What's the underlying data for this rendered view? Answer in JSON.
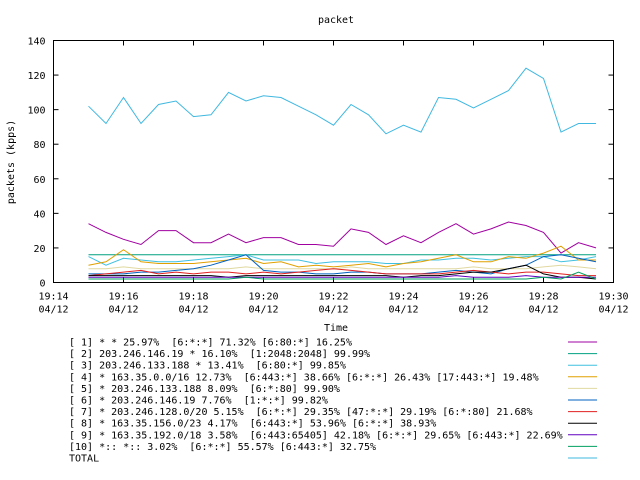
{
  "chart_data": {
    "type": "line",
    "title": "packet",
    "xlabel": "Time",
    "ylabel": "packets (kpps)",
    "ylim": [
      0,
      140
    ],
    "yticks": [
      0,
      20,
      40,
      60,
      80,
      100,
      120,
      140
    ],
    "xlim": [
      "19:14",
      "19:30"
    ],
    "xticks": [
      {
        "time": "19:14",
        "date": "04/12"
      },
      {
        "time": "19:16",
        "date": "04/12"
      },
      {
        "time": "19:18",
        "date": "04/12"
      },
      {
        "time": "19:20",
        "date": "04/12"
      },
      {
        "time": "19:22",
        "date": "04/12"
      },
      {
        "time": "19:24",
        "date": "04/12"
      },
      {
        "time": "19:26",
        "date": "04/12"
      },
      {
        "time": "19:28",
        "date": "04/12"
      },
      {
        "time": "19:30",
        "date": "04/12"
      }
    ],
    "grid": false,
    "legend_position": "bottom",
    "x": [
      "19:15",
      "19:15:30",
      "19:16",
      "19:16:30",
      "19:17",
      "19:17:30",
      "19:18",
      "19:18:30",
      "19:19",
      "19:19:30",
      "19:20",
      "19:20:30",
      "19:21",
      "19:21:30",
      "19:22",
      "19:22:30",
      "19:23",
      "19:23:30",
      "19:24",
      "19:24:30",
      "19:25",
      "19:25:30",
      "19:26",
      "19:26:30",
      "19:27",
      "19:27:30",
      "19:28",
      "19:28:30",
      "19:29",
      "19:29:30"
    ],
    "series": [
      {
        "name": "[ 1] * * 25.97%  [6:*:*] 71.32% [6:80:*] 16.25%",
        "color": "#a000a0",
        "values": [
          34,
          29,
          25,
          22,
          30,
          30,
          23,
          23,
          28,
          23,
          26,
          26,
          22,
          22,
          21,
          31,
          29,
          22,
          27,
          23,
          29,
          34,
          28,
          31,
          35,
          33,
          29,
          17,
          23,
          20
        ]
      },
      {
        "name": "[ 2] 203.246.146.19 * 16.10%  [1:2048:2048] 99.99%",
        "color": "#00a080",
        "values": [
          16,
          16,
          16,
          16,
          16,
          16,
          16,
          16,
          16,
          16,
          16,
          16,
          16,
          16,
          16,
          16,
          16,
          16,
          16,
          16,
          16,
          16,
          16,
          16,
          16,
          16,
          16,
          16,
          16,
          16
        ]
      },
      {
        "name": "[ 3] 203.246.133.188 * 13.41%  [6:80:*] 99.85%",
        "color": "#40c0e0",
        "values": [
          15,
          10,
          14,
          13,
          12,
          12,
          13,
          14,
          15,
          16,
          13,
          13,
          13,
          11,
          12,
          12,
          12,
          11,
          11,
          13,
          13,
          14,
          14,
          13,
          14,
          15,
          15,
          12,
          13,
          15
        ]
      },
      {
        "name": "[ 4] * 163.35.0.0/16 12.73%  [6:443:*] 38.66% [6:*:*] 26.43% [17:443:*] 19.48%",
        "color": "#e0a000",
        "values": [
          10,
          12,
          19,
          12,
          11,
          11,
          11,
          12,
          13,
          14,
          11,
          12,
          9,
          10,
          9,
          10,
          11,
          9,
          11,
          12,
          14,
          16,
          12,
          12,
          15,
          14,
          17,
          21,
          13,
          13
        ]
      },
      {
        "name": "[ 5] * 203.246.133.188 8.09%  [6:*:80] 99.90%",
        "color": "#e0d8a0",
        "values": [
          8,
          8,
          9,
          8,
          8,
          8,
          8,
          8,
          8,
          9,
          8,
          8,
          8,
          8,
          8,
          9,
          8,
          8,
          8,
          8,
          8,
          8,
          9,
          8,
          8,
          8,
          9,
          10,
          9,
          8
        ]
      },
      {
        "name": "[ 6] * 203.246.146.19 7.76%  [1:*:*] 99.82%",
        "color": "#0060c0",
        "values": [
          5,
          5,
          5,
          6,
          6,
          7,
          8,
          10,
          13,
          16,
          7,
          6,
          6,
          5,
          5,
          6,
          6,
          5,
          5,
          5,
          6,
          7,
          6,
          5,
          8,
          10,
          15,
          16,
          14,
          12
        ]
      },
      {
        "name": "[ 7] * 203.246.128.0/20 5.15%  [6:*:*] 29.35% [47:*:*] 29.19% [6:*:80] 21.68%",
        "color": "#e02020",
        "values": [
          4,
          5,
          6,
          7,
          5,
          6,
          5,
          6,
          6,
          5,
          6,
          5,
          6,
          7,
          8,
          7,
          6,
          5,
          5,
          5,
          5,
          6,
          7,
          6,
          5,
          6,
          6,
          5,
          4,
          4
        ]
      },
      {
        "name": "[ 8] * 163.35.156.0/23 4.17%  [6:443:*] 53.96% [6:*:*] 38.93%",
        "color": "#000000",
        "values": [
          4,
          4,
          4,
          4,
          4,
          4,
          4,
          4,
          3,
          4,
          4,
          4,
          4,
          4,
          4,
          4,
          4,
          4,
          3,
          4,
          4,
          5,
          6,
          6,
          8,
          10,
          5,
          3,
          3,
          2
        ]
      },
      {
        "name": "[ 9] * 163.35.192.0/18 3.58%  [6:443:65405] 42.18% [6:*:*] 29.65% [6:443:*] 22.69%",
        "color": "#6000c0",
        "values": [
          3,
          3,
          3,
          3,
          3,
          3,
          3,
          3,
          3,
          3,
          3,
          3,
          3,
          3,
          3,
          3,
          3,
          3,
          3,
          3,
          3,
          4,
          3,
          3,
          3,
          4,
          3,
          3,
          3,
          3
        ]
      },
      {
        "name": "[10] *:: *:: 3.02%  [6:*:*] 55.57% [6:443:*] 32.75%",
        "color": "#00a060",
        "values": [
          2,
          2,
          2,
          2,
          2,
          2,
          2,
          2,
          2,
          3,
          2,
          2,
          2,
          2,
          2,
          2,
          2,
          2,
          2,
          2,
          2,
          2,
          2,
          2,
          2,
          2,
          3,
          2,
          6,
          2
        ]
      },
      {
        "name": "TOTAL",
        "color": "#40b8e0",
        "values": [
          102,
          92,
          107,
          92,
          103,
          105,
          96,
          97,
          110,
          105,
          108,
          107,
          102,
          97,
          91,
          103,
          97,
          86,
          91,
          87,
          107,
          106,
          101,
          106,
          111,
          124,
          118,
          87,
          92,
          92
        ]
      }
    ]
  }
}
